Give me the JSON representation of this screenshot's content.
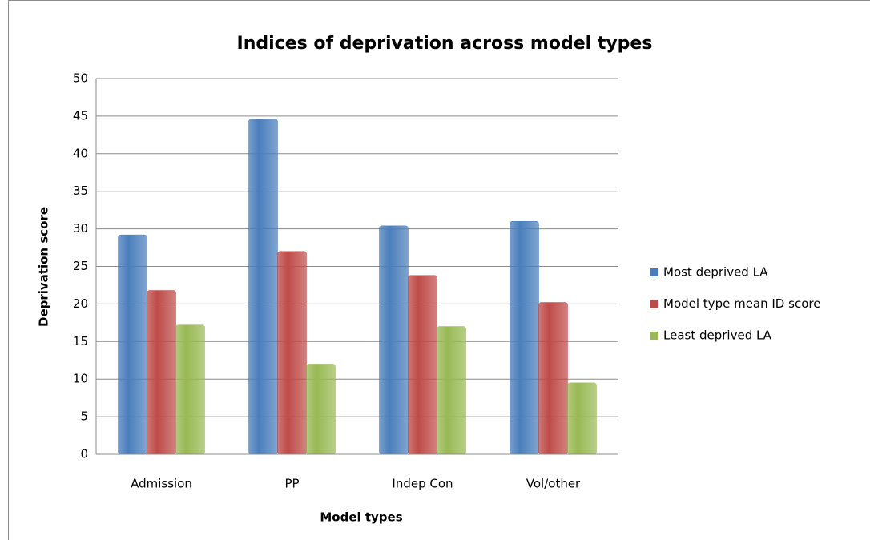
{
  "chart_data": {
    "type": "bar",
    "title": "Indices of deprivation across model types",
    "x_label": "Model types",
    "y_label": "Deprivation score",
    "categories": [
      "Admission",
      "PP",
      "Indep Con",
      "Vol/other"
    ],
    "series": [
      {
        "name": "Most deprived LA",
        "color": "#4a7ebb",
        "values": [
          29.2,
          44.6,
          30.4,
          31.0
        ]
      },
      {
        "name": "Model type mean ID score",
        "color": "#be4b48",
        "values": [
          21.8,
          27.0,
          23.8,
          20.2
        ]
      },
      {
        "name": "Least deprived LA",
        "color": "#98b954",
        "values": [
          17.2,
          12.0,
          17.0,
          9.5
        ]
      }
    ],
    "ylim": [
      0,
      50
    ],
    "yticks": [
      0,
      5,
      10,
      15,
      20,
      25,
      30,
      35,
      40,
      45,
      50
    ],
    "grid": true,
    "legend": "right"
  }
}
